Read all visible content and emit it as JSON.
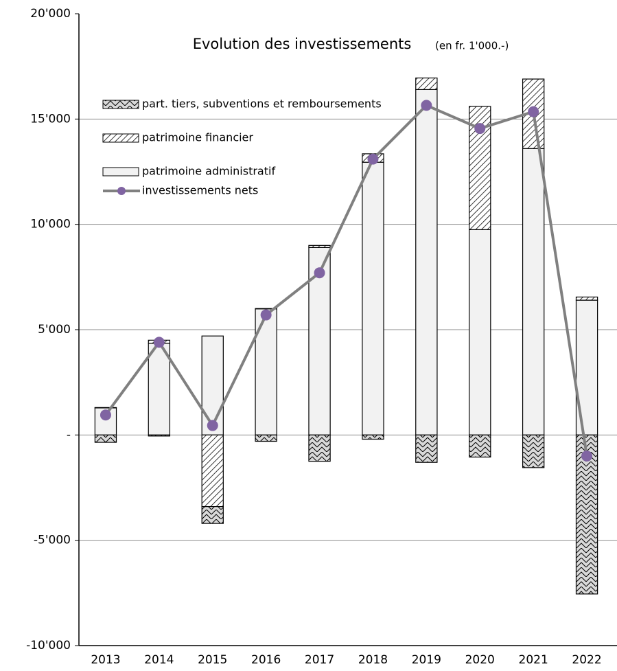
{
  "chart_data": {
    "type": "bar",
    "title": "Evolution des investissements",
    "subtitle": "(en fr. 1'000.-)",
    "categories": [
      "2013",
      "2014",
      "2015",
      "2016",
      "2017",
      "2018",
      "2019",
      "2020",
      "2021",
      "2022"
    ],
    "series": [
      {
        "name": "patrimoine administratif",
        "type": "bar",
        "color": "#f2f2f2",
        "pattern": "none",
        "values": [
          1300,
          4350,
          4700,
          6000,
          8900,
          12950,
          16400,
          9750,
          13600,
          6400
        ]
      },
      {
        "name": "patrimoine financier",
        "type": "bar",
        "color": "#ffffff",
        "pattern": "diagonal",
        "values": [
          0,
          150,
          -3400,
          0,
          100,
          400,
          550,
          5850,
          3300,
          150
        ]
      },
      {
        "name": "part. tiers, subventions et remboursements",
        "type": "bar",
        "color": "#d9d9d9",
        "pattern": "crosshatch",
        "values": [
          -350,
          -50,
          -800,
          -300,
          -1250,
          -200,
          -1300,
          -1050,
          -1550,
          -7550
        ]
      },
      {
        "name": "investissements nets",
        "type": "line",
        "color": "#808080",
        "marker_color": "#8064a2",
        "values": [
          950,
          4400,
          450,
          5700,
          7700,
          13100,
          15650,
          14550,
          15350,
          -1000
        ]
      }
    ],
    "ylim": [
      -10000,
      20000
    ],
    "yticks": [
      {
        "value": -10000,
        "label": "-10'000"
      },
      {
        "value": -5000,
        "label": "-5'000"
      },
      {
        "value": 0,
        "label": "-"
      },
      {
        "value": 5000,
        "label": "5'000"
      },
      {
        "value": 10000,
        "label": "10'000"
      },
      {
        "value": 15000,
        "label": "15'000"
      },
      {
        "value": 20000,
        "label": "20'000"
      }
    ],
    "grid": true
  }
}
